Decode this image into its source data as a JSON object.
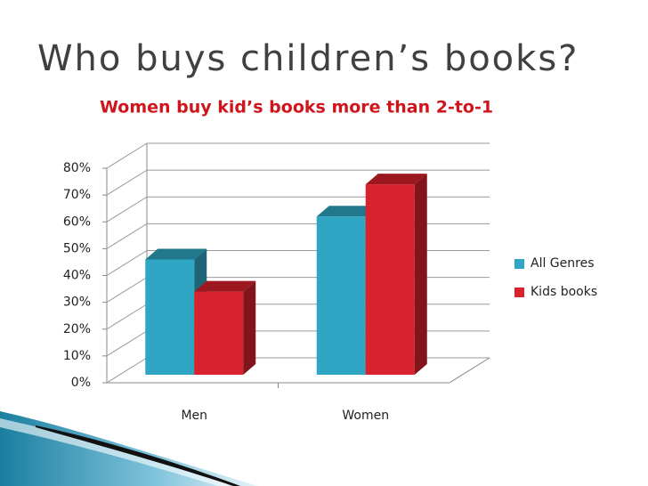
{
  "chart_data": {
    "type": "bar3d",
    "title": "Who buys children’s books?",
    "subtitle": "Women buy kid’s books more than 2-to-1",
    "categories": [
      "Men",
      "Women"
    ],
    "series": [
      {
        "name": "All Genres",
        "color": "#2ea6c4",
        "values": [
          43,
          59
        ]
      },
      {
        "name": "Kids books",
        "color": "#d8222d",
        "values": [
          31,
          71
        ]
      }
    ],
    "ylim": [
      0,
      80
    ],
    "yticks": [
      {
        "value": 0,
        "label": "0%"
      },
      {
        "value": 10,
        "label": "10%"
      },
      {
        "value": 20,
        "label": "20%"
      },
      {
        "value": 30,
        "label": "30%"
      },
      {
        "value": 40,
        "label": "40%"
      },
      {
        "value": 50,
        "label": "50%"
      },
      {
        "value": 60,
        "label": "60%"
      },
      {
        "value": 70,
        "label": "70%"
      },
      {
        "value": 80,
        "label": "80%"
      }
    ],
    "grid": true,
    "legend": "right"
  }
}
